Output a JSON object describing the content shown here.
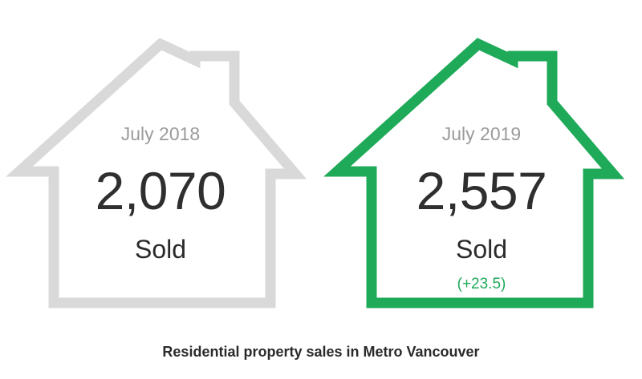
{
  "colors": {
    "previous_outline": "#d9d9d9",
    "current_outline": "#1faa59",
    "change_text": "#1faa59"
  },
  "icons": {
    "previous": "house-outline-icon",
    "current": "house-outline-icon"
  },
  "previous": {
    "period": "July 2018",
    "count": "2,070",
    "unit": "Sold"
  },
  "current": {
    "period": "July 2019",
    "count": "2,557",
    "unit": "Sold",
    "change": "(+23.5)"
  },
  "caption": "Residential property sales in Metro Vancouver"
}
